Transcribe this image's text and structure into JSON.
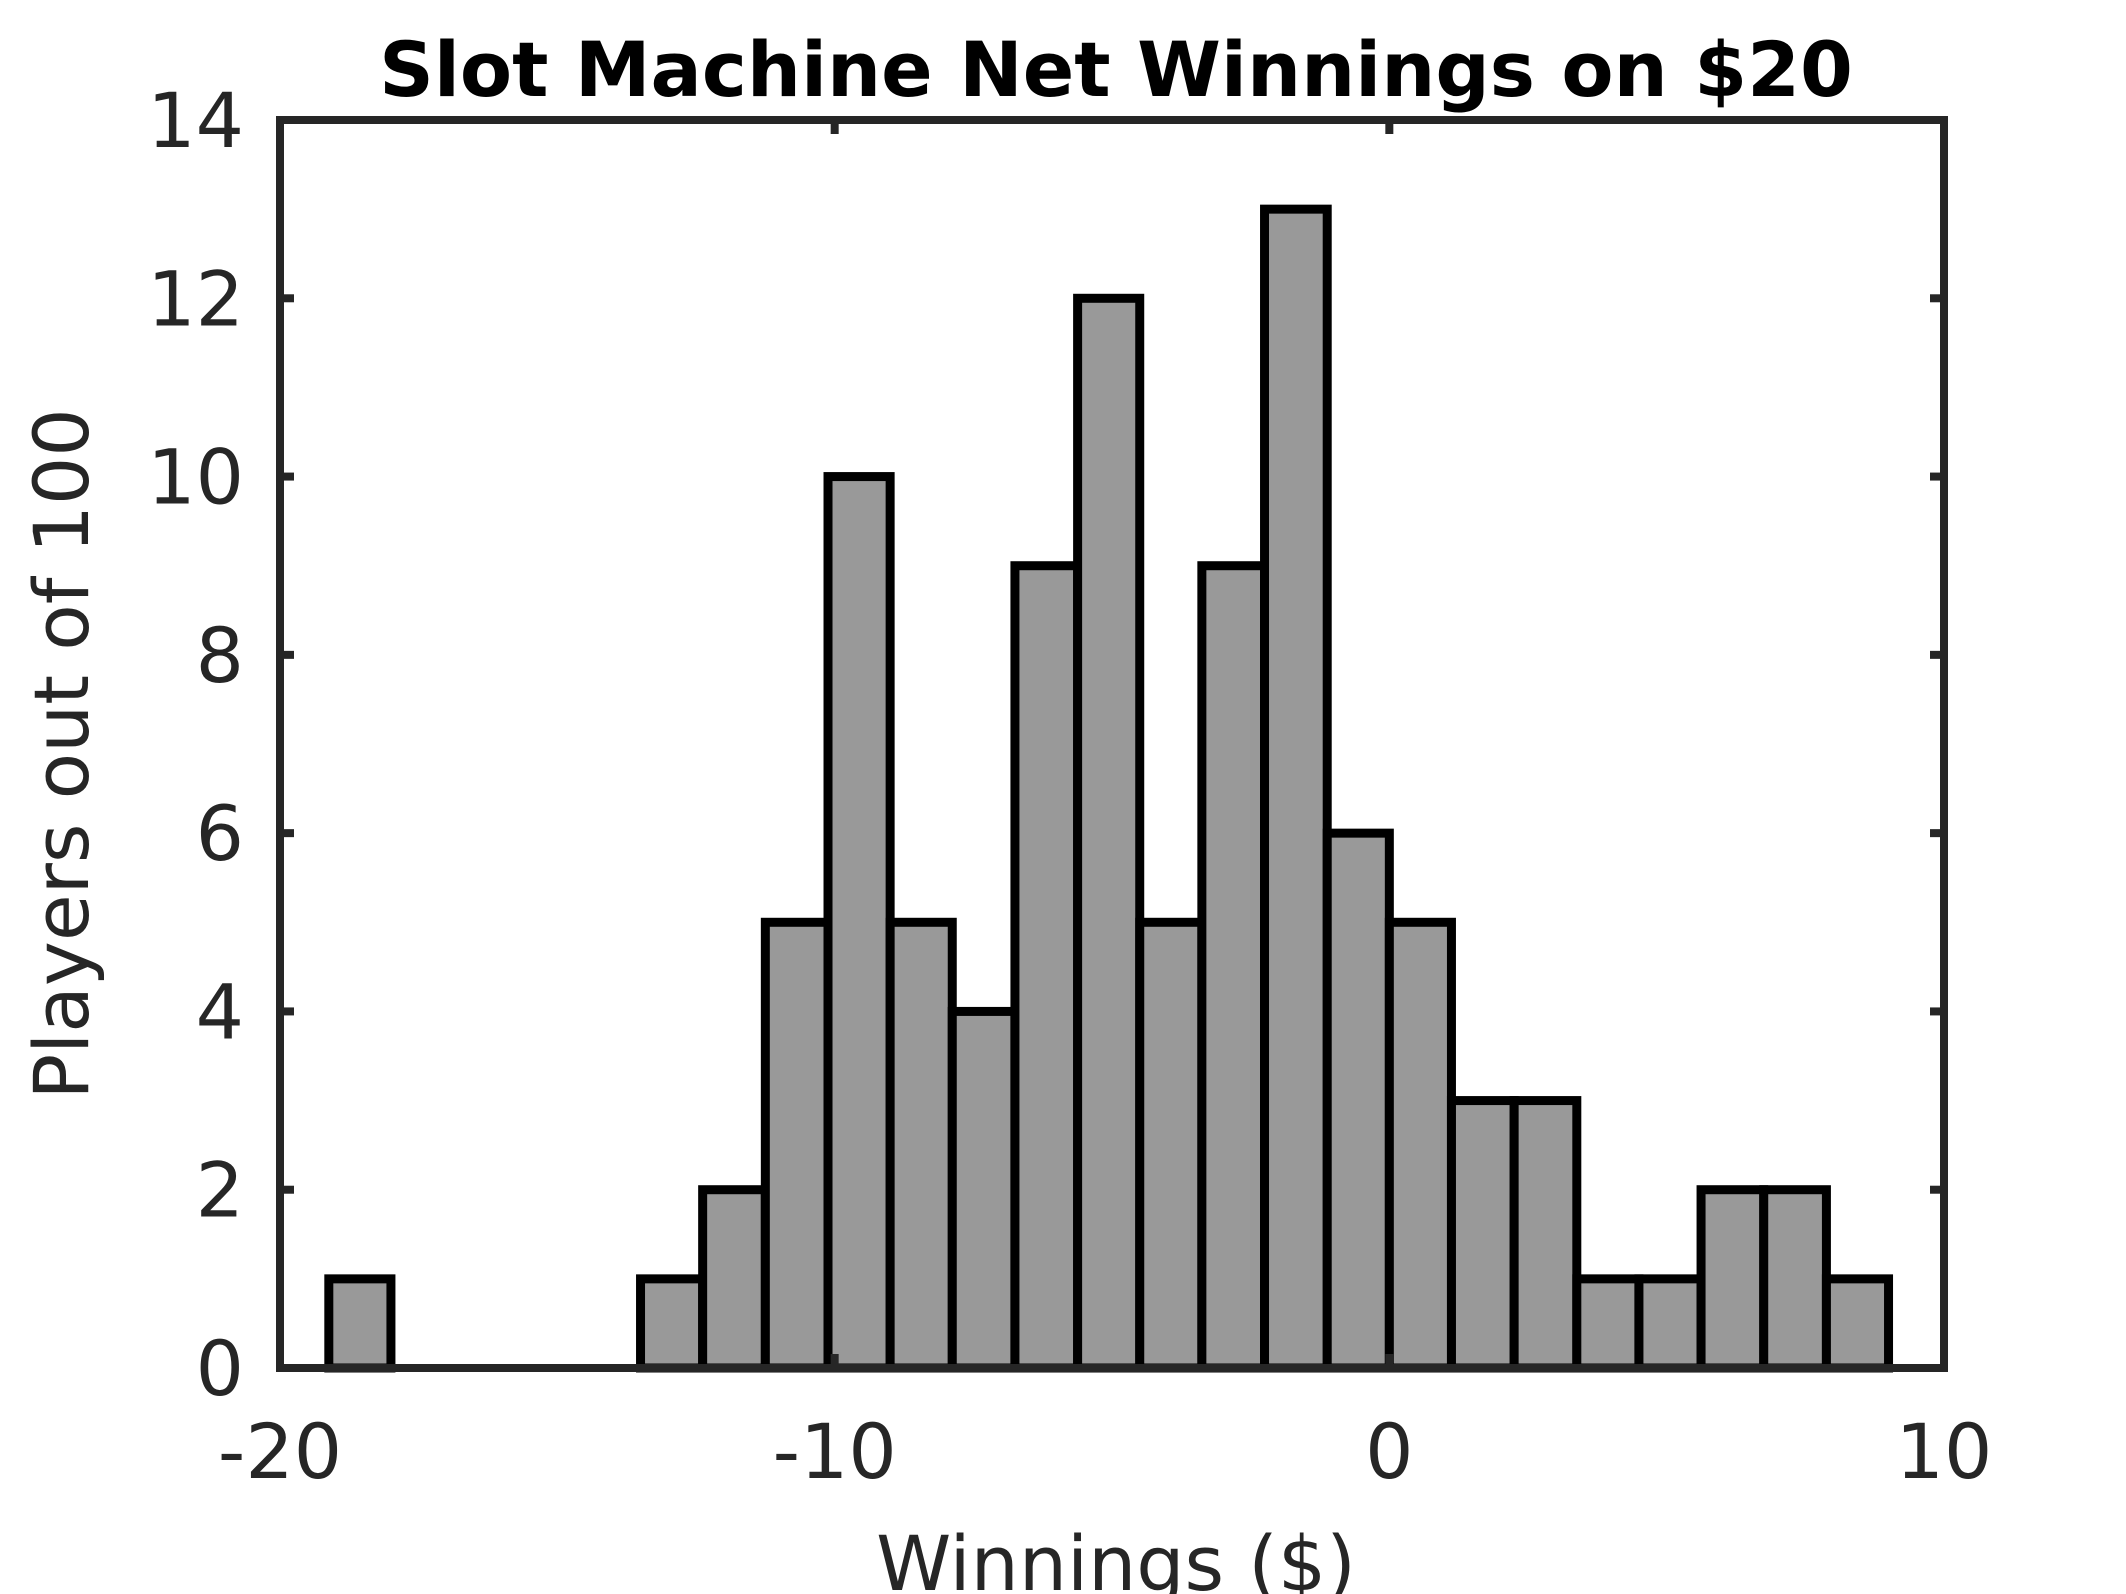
{
  "chart_data": {
    "type": "bar",
    "title": "Slot Machine Net Winnings on $20",
    "xlabel": "Winnings ($)",
    "ylabel": "Players out of 100",
    "xlim": [
      -20,
      10
    ],
    "ylim": [
      0,
      14
    ],
    "xticks": [
      -20,
      -10,
      0,
      10
    ],
    "yticks": [
      0,
      2,
      4,
      6,
      8,
      10,
      12,
      14
    ],
    "xtick_labels": [
      "-20",
      "-10",
      "0",
      "10"
    ],
    "ytick_labels": [
      "0",
      "2",
      "4",
      "6",
      "8",
      "10",
      "12",
      "14"
    ],
    "grid": false,
    "bin_width": 1.125,
    "bins": [
      {
        "x0": -19.12,
        "x1": -18.0,
        "count": 1
      },
      {
        "x0": -13.5,
        "x1": -12.38,
        "count": 1
      },
      {
        "x0": -12.38,
        "x1": -11.25,
        "count": 2
      },
      {
        "x0": -11.25,
        "x1": -10.12,
        "count": 5
      },
      {
        "x0": -10.12,
        "x1": -9.0,
        "count": 10
      },
      {
        "x0": -9.0,
        "x1": -7.88,
        "count": 5
      },
      {
        "x0": -7.88,
        "x1": -6.75,
        "count": 4
      },
      {
        "x0": -6.75,
        "x1": -5.62,
        "count": 9
      },
      {
        "x0": -5.62,
        "x1": -4.5,
        "count": 12
      },
      {
        "x0": -4.5,
        "x1": -3.38,
        "count": 5
      },
      {
        "x0": -3.38,
        "x1": -2.25,
        "count": 9
      },
      {
        "x0": -2.25,
        "x1": -1.12,
        "count": 13
      },
      {
        "x0": -1.12,
        "x1": 0.0,
        "count": 6
      },
      {
        "x0": 0.0,
        "x1": 1.12,
        "count": 5
      },
      {
        "x0": 1.12,
        "x1": 2.25,
        "count": 3
      },
      {
        "x0": 2.25,
        "x1": 3.38,
        "count": 3
      },
      {
        "x0": 3.38,
        "x1": 4.5,
        "count": 1
      },
      {
        "x0": 4.5,
        "x1": 5.62,
        "count": 1
      },
      {
        "x0": 5.62,
        "x1": 6.75,
        "count": 2
      },
      {
        "x0": 6.75,
        "x1": 7.88,
        "count": 2
      },
      {
        "x0": 7.88,
        "x1": 9.0,
        "count": 1
      }
    ],
    "colors": {
      "bar_fill": "#999999",
      "bar_edge": "#000000",
      "axes": "#262626",
      "title": "#000000",
      "background": "#ffffff"
    }
  }
}
